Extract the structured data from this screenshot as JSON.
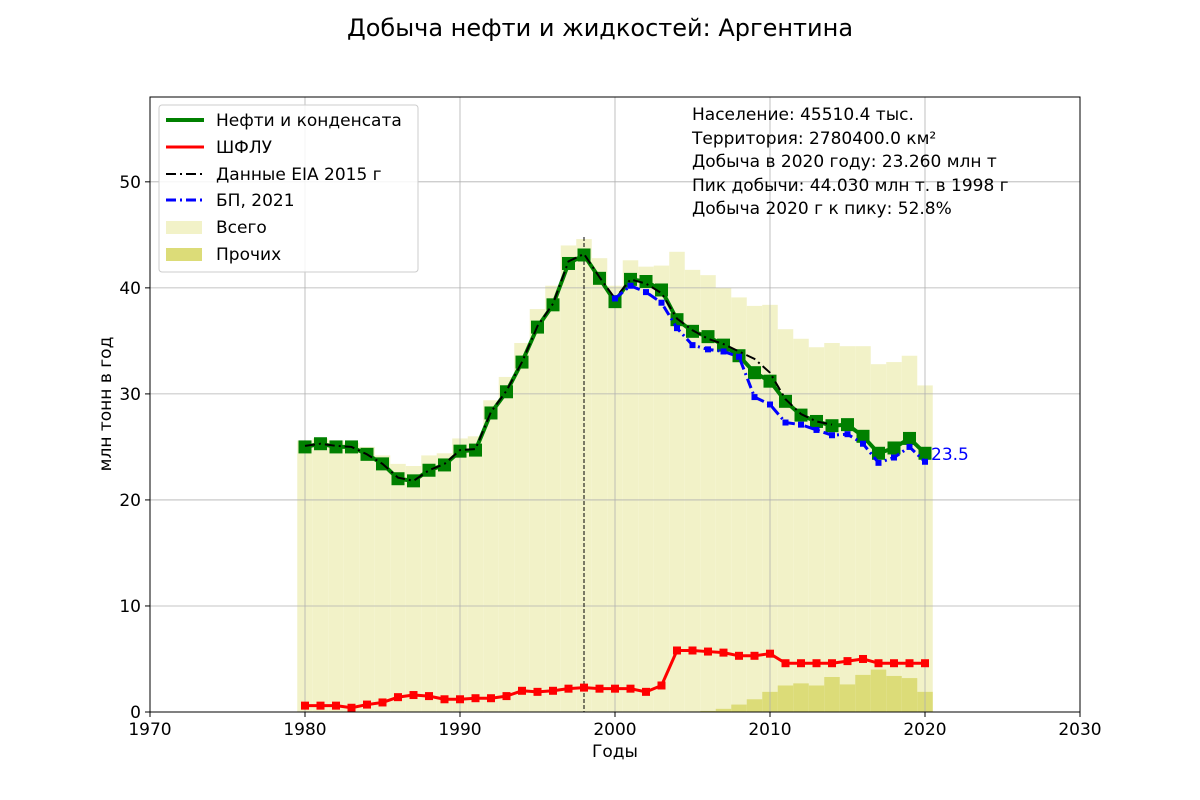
{
  "chart_data": {
    "type": "line",
    "title": "Добыча нефти и жидкостей: Аргентина",
    "xlabel": "Годы",
    "ylabel": "млн тонн в год",
    "xlim": [
      1970,
      2030
    ],
    "ylim": [
      0,
      58
    ],
    "xticks": [
      1970,
      1980,
      1990,
      2000,
      2010,
      2020,
      2030
    ],
    "yticks": [
      0,
      10,
      20,
      30,
      40,
      50
    ],
    "grid": true,
    "legend_position": "top-left",
    "peak_year": 1998,
    "last_label": "23.5",
    "info": [
      "Население: 45510.4 тыс.",
      "Территория: 2780400.0 км²",
      "Добыча в 2020 году: 23.260 млн т",
      "Пик добычи: 44.030 млн т. в 1998 г",
      "Добыча 2020 г к пику: 52.8%"
    ],
    "legend": [
      {
        "label": "Нефти и конденсата",
        "kind": "line",
        "color": "#008000",
        "dash": "none"
      },
      {
        "label": "ШФЛУ",
        "kind": "line",
        "color": "#ff0000",
        "dash": "none"
      },
      {
        "label": "Данные EIA 2015 г",
        "kind": "line",
        "color": "#000000",
        "dash": "dashdot"
      },
      {
        "label": "БП, 2021",
        "kind": "line",
        "color": "#0000ff",
        "dash": "dashdot"
      },
      {
        "label": "Всего",
        "kind": "patch",
        "color": "#f2f2c8"
      },
      {
        "label": "Прочих",
        "kind": "patch",
        "color": "#dcdc78"
      }
    ],
    "series": [
      {
        "name": "Всего",
        "kind": "bars",
        "color": "#f2f2c8",
        "x": [
          1980,
          1981,
          1982,
          1983,
          1984,
          1985,
          1986,
          1987,
          1988,
          1989,
          1990,
          1991,
          1992,
          1993,
          1994,
          1995,
          1996,
          1997,
          1998,
          1999,
          2000,
          2001,
          2002,
          2003,
          2004,
          2005,
          2006,
          2007,
          2008,
          2009,
          2010,
          2011,
          2012,
          2013,
          2014,
          2015,
          2016,
          2017,
          2018,
          2019,
          2020
        ],
        "values": [
          25.6,
          25.8,
          25.6,
          25.4,
          25.0,
          24.2,
          23.4,
          23.2,
          24.2,
          24.4,
          25.8,
          26.0,
          29.4,
          31.6,
          34.8,
          38.0,
          40.2,
          44.0,
          44.6,
          42.8,
          40.2,
          42.6,
          42.0,
          42.1,
          43.4,
          41.7,
          41.2,
          40.0,
          39.1,
          38.3,
          38.4,
          36.1,
          35.2,
          34.4,
          34.8,
          34.5,
          34.5,
          32.8,
          33.0,
          33.6,
          30.8
        ]
      },
      {
        "name": "Прочих",
        "kind": "bars",
        "color": "#dcdc78",
        "x": [
          2006,
          2007,
          2008,
          2009,
          2010,
          2011,
          2012,
          2013,
          2014,
          2015,
          2016,
          2017,
          2018,
          2019,
          2020
        ],
        "values": [
          0.1,
          0.3,
          0.7,
          1.2,
          1.9,
          2.5,
          2.7,
          2.5,
          3.3,
          2.6,
          3.5,
          4.0,
          3.4,
          3.2,
          1.9
        ]
      },
      {
        "name": "Нефти и конденсата",
        "kind": "line",
        "color": "#008000",
        "x": [
          1980,
          1981,
          1982,
          1983,
          1984,
          1985,
          1986,
          1987,
          1988,
          1989,
          1990,
          1991,
          1992,
          1993,
          1994,
          1995,
          1996,
          1997,
          1998,
          1999,
          2000,
          2001,
          2002,
          2003,
          2004,
          2005,
          2006,
          2007,
          2008,
          2009,
          2010,
          2011,
          2012,
          2013,
          2014,
          2015,
          2016,
          2017,
          2018,
          2019,
          2020
        ],
        "values": [
          25.0,
          25.3,
          25.0,
          25.0,
          24.3,
          23.4,
          22.0,
          21.8,
          22.8,
          23.3,
          24.6,
          24.7,
          28.2,
          30.2,
          33.0,
          36.3,
          38.4,
          42.3,
          43.1,
          40.9,
          38.7,
          40.8,
          40.6,
          39.8,
          37.0,
          35.9,
          35.4,
          34.6,
          33.6,
          32.0,
          31.2,
          29.3,
          28.0,
          27.4,
          27.0,
          27.1,
          26.0,
          24.4,
          24.9,
          25.8,
          24.4
        ]
      },
      {
        "name": "Данные EIA 2015 г",
        "kind": "line",
        "color": "#000000",
        "dash": "dashdot",
        "x": [
          1980,
          1981,
          1982,
          1983,
          1984,
          1985,
          1986,
          1987,
          1988,
          1989,
          1990,
          1991,
          1992,
          1993,
          1994,
          1995,
          1996,
          1997,
          1998,
          1999,
          2000,
          2001,
          2002,
          2003,
          2004,
          2005,
          2006,
          2007,
          2008,
          2009,
          2010,
          2011,
          2012,
          2013,
          2014
        ],
        "values": [
          25.1,
          25.3,
          25.1,
          25.0,
          24.3,
          23.4,
          22.1,
          21.8,
          22.8,
          23.4,
          24.7,
          24.8,
          28.3,
          30.3,
          33.0,
          36.4,
          38.5,
          42.5,
          43.2,
          41.0,
          39.0,
          40.8,
          40.4,
          39.5,
          37.1,
          36.0,
          35.2,
          34.7,
          34.0,
          33.3,
          32.0,
          29.5,
          28.1,
          27.4,
          27.1
        ]
      },
      {
        "name": "БП, 2021",
        "kind": "line",
        "color": "#0000ff",
        "dash": "dashdot",
        "x": [
          2000,
          2001,
          2002,
          2003,
          2004,
          2005,
          2006,
          2007,
          2008,
          2009,
          2010,
          2011,
          2012,
          2013,
          2014,
          2015,
          2016,
          2017,
          2018,
          2019,
          2020
        ],
        "values": [
          39.0,
          40.2,
          39.6,
          38.6,
          36.2,
          34.6,
          34.2,
          34.0,
          33.5,
          29.7,
          29.0,
          27.3,
          27.1,
          26.6,
          26.1,
          26.2,
          25.3,
          23.5,
          24.0,
          25.0,
          23.6
        ]
      },
      {
        "name": "ШФЛУ",
        "kind": "line",
        "color": "#ff0000",
        "x": [
          1980,
          1981,
          1982,
          1983,
          1984,
          1985,
          1986,
          1987,
          1988,
          1989,
          1990,
          1991,
          1992,
          1993,
          1994,
          1995,
          1996,
          1997,
          1998,
          1999,
          2000,
          2001,
          2002,
          2003,
          2004,
          2005,
          2006,
          2007,
          2008,
          2009,
          2010,
          2011,
          2012,
          2013,
          2014,
          2015,
          2016,
          2017,
          2018,
          2019,
          2020
        ],
        "values": [
          0.6,
          0.6,
          0.6,
          0.4,
          0.7,
          0.9,
          1.4,
          1.6,
          1.5,
          1.2,
          1.2,
          1.3,
          1.3,
          1.5,
          2.0,
          1.9,
          2.0,
          2.2,
          2.3,
          2.2,
          2.2,
          2.2,
          1.9,
          2.5,
          5.8,
          5.8,
          5.7,
          5.6,
          5.3,
          5.3,
          5.5,
          4.6,
          4.6,
          4.6,
          4.6,
          4.8,
          5.0,
          4.6,
          4.6,
          4.6,
          4.6
        ]
      }
    ]
  }
}
